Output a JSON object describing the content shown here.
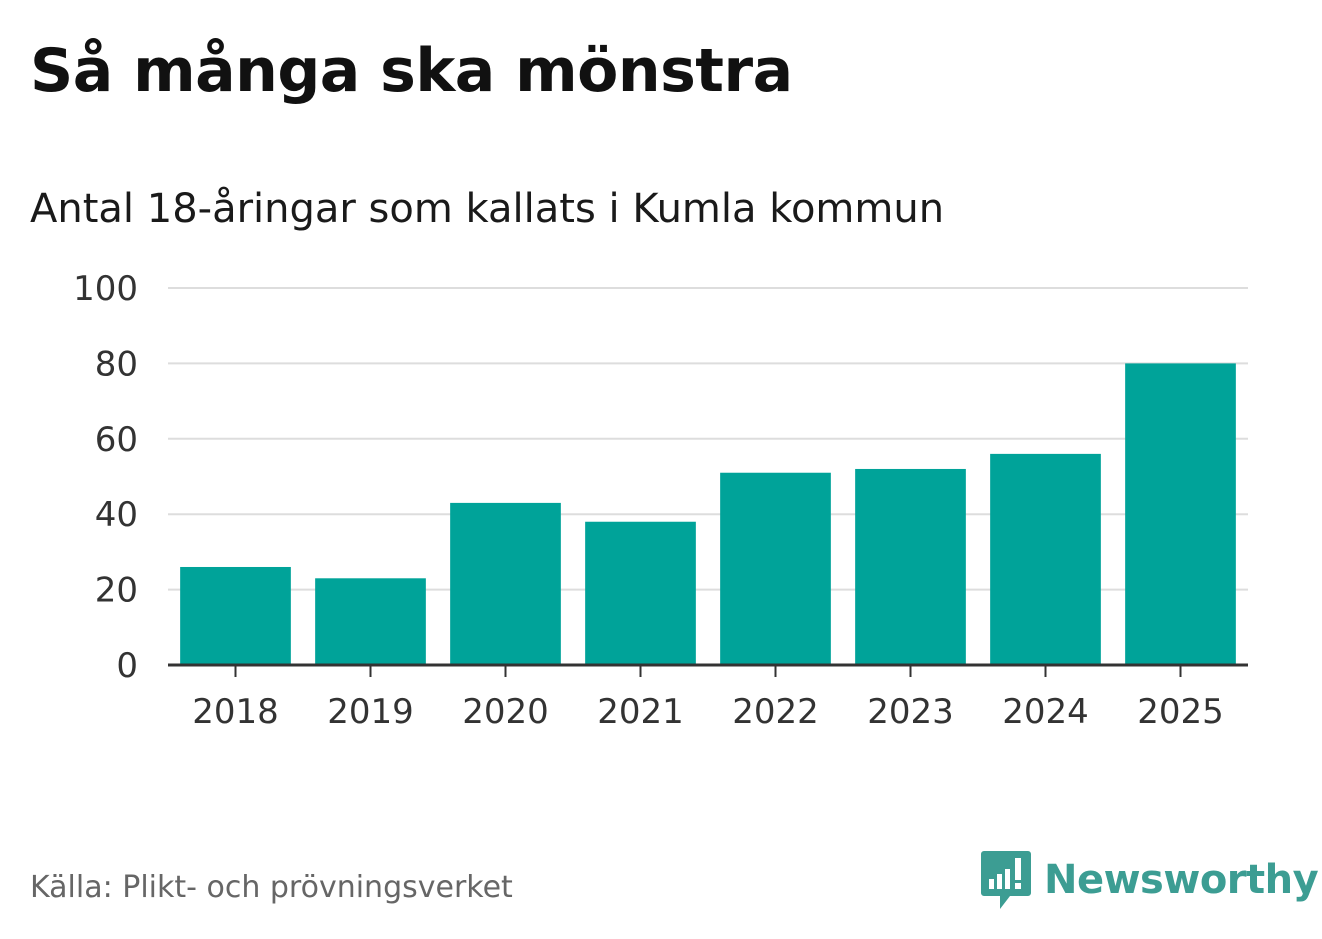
{
  "header": {
    "title": "Så många ska mönstra",
    "subtitle": "Antal 18-åringar som kallats i Kumla kommun"
  },
  "footer": {
    "source": "Källa: Plikt- och prövningsverket",
    "brand": "Newsworthy",
    "brand_icon": "newsworthy-logo-icon"
  },
  "colors": {
    "bar": "#00a399",
    "grid": "#dddddd",
    "axis": "#333333",
    "brand": "#3c9d93"
  },
  "chart_data": {
    "type": "bar",
    "title": "Så många ska mönstra",
    "subtitle": "Antal 18-åringar som kallats i Kumla kommun",
    "xlabel": "",
    "ylabel": "",
    "categories": [
      "2018",
      "2019",
      "2020",
      "2021",
      "2022",
      "2023",
      "2024",
      "2025"
    ],
    "values": [
      26,
      23,
      43,
      38,
      51,
      52,
      56,
      80
    ],
    "ylim": [
      0,
      100
    ],
    "yticks": [
      0,
      20,
      40,
      60,
      80,
      100
    ],
    "grid": true,
    "legend": "none"
  }
}
